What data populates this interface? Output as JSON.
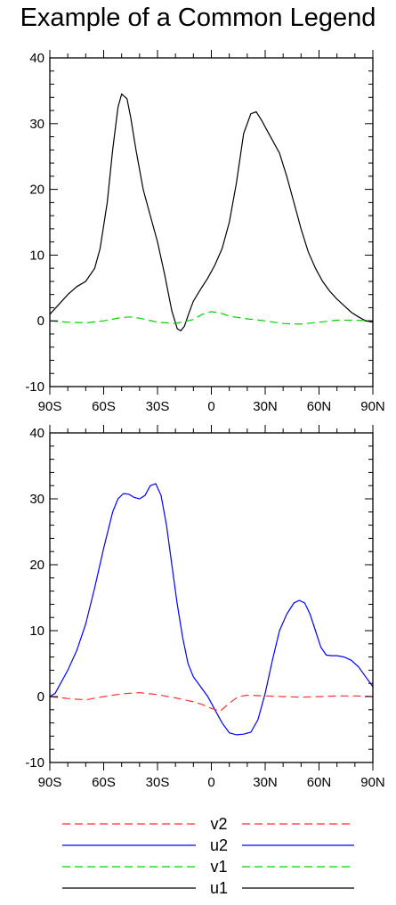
{
  "title": "Example of a Common Legend",
  "chart_data": [
    {
      "type": "line",
      "xlabel": "",
      "ylabel": "",
      "xlim": [
        -90,
        90
      ],
      "ylim": [
        -10,
        40
      ],
      "x_ticks": [
        -90,
        -60,
        -30,
        0,
        30,
        60,
        90
      ],
      "x_tick_labels": [
        "90S",
        "60S",
        "30S",
        "0",
        "30N",
        "60N",
        "90N"
      ],
      "y_ticks": [
        -10,
        0,
        10,
        20,
        30,
        40
      ],
      "y_tick_labels": [
        "-10",
        "0",
        "10",
        "20",
        "30",
        "40"
      ],
      "series": [
        {
          "name": "u1",
          "color": "#000000",
          "dash": "solid",
          "x": [
            -90,
            -85,
            -80,
            -75,
            -70,
            -65,
            -62,
            -58,
            -55,
            -52,
            -50,
            -47,
            -45,
            -42,
            -38,
            -34,
            -30,
            -26,
            -22,
            -19,
            -17,
            -15,
            -13,
            -10,
            -6,
            -2,
            2,
            6,
            10,
            14,
            18,
            22,
            25,
            28,
            31,
            34,
            38,
            42,
            46,
            50,
            54,
            58,
            62,
            66,
            70,
            74,
            78,
            82,
            86,
            90
          ],
          "y": [
            1,
            2.5,
            4,
            5.2,
            6,
            8,
            11,
            18,
            26,
            32.5,
            34.5,
            33.8,
            31,
            26,
            20,
            16,
            12,
            7,
            1.5,
            -1.2,
            -1.5,
            -0.8,
            0.8,
            3,
            4.8,
            6.5,
            8.5,
            11,
            15,
            21,
            28.5,
            31.5,
            31.8,
            30.5,
            29,
            27.5,
            25.5,
            22,
            18,
            14,
            10.5,
            8,
            6,
            4.5,
            3.3,
            2.3,
            1.3,
            0.6,
            0,
            -0.2
          ]
        },
        {
          "name": "v1",
          "color": "#00d200",
          "dash": "dashed",
          "x": [
            -90,
            -80,
            -70,
            -60,
            -50,
            -45,
            -40,
            -30,
            -20,
            -10,
            -5,
            0,
            5,
            10,
            20,
            30,
            40,
            50,
            60,
            70,
            80,
            90
          ],
          "y": [
            0,
            -0.2,
            -0.3,
            0,
            0.5,
            0.6,
            0.4,
            -0.2,
            -0.4,
            0.2,
            1,
            1.4,
            1.2,
            0.7,
            0.3,
            0,
            -0.4,
            -0.5,
            -0.2,
            0.1,
            0.1,
            0
          ]
        }
      ]
    },
    {
      "type": "line",
      "xlabel": "",
      "ylabel": "",
      "xlim": [
        -90,
        90
      ],
      "ylim": [
        -10,
        40
      ],
      "x_ticks": [
        -90,
        -60,
        -30,
        0,
        30,
        60,
        90
      ],
      "x_tick_labels": [
        "90S",
        "60S",
        "30S",
        "0",
        "30N",
        "60N",
        "90N"
      ],
      "y_ticks": [
        -10,
        0,
        10,
        20,
        30,
        40
      ],
      "y_tick_labels": [
        "-10",
        "0",
        "10",
        "20",
        "30",
        "40"
      ],
      "series": [
        {
          "name": "u2",
          "color": "#0000ff",
          "dash": "solid",
          "x": [
            -90,
            -87,
            -84,
            -80,
            -75,
            -70,
            -65,
            -60,
            -55,
            -52,
            -49,
            -46,
            -43,
            -40,
            -37,
            -34,
            -31,
            -28,
            -25,
            -22,
            -19,
            -16,
            -13,
            -10,
            -6,
            -2,
            2,
            6,
            10,
            14,
            18,
            22,
            26,
            30,
            34,
            38,
            42,
            46,
            49,
            52,
            55,
            58,
            61,
            64,
            67,
            70,
            74,
            78,
            82,
            86,
            90
          ],
          "y": [
            0,
            0.5,
            2,
            4,
            7,
            11,
            16.5,
            22.5,
            28,
            30,
            30.8,
            30.7,
            30.2,
            30,
            30.5,
            32,
            32.3,
            30.5,
            26,
            20,
            14,
            9,
            5,
            3,
            1.5,
            0,
            -2,
            -4,
            -5.5,
            -5.8,
            -5.7,
            -5.4,
            -3.5,
            0.5,
            5.5,
            10,
            12.5,
            14.2,
            14.6,
            14.2,
            12.5,
            10,
            7.5,
            6.3,
            6.2,
            6.2,
            6,
            5.5,
            4.5,
            3,
            1.5
          ]
        },
        {
          "name": "v2",
          "color": "#ff3030",
          "dash": "dashed",
          "x": [
            -90,
            -80,
            -70,
            -60,
            -50,
            -40,
            -30,
            -20,
            -10,
            -5,
            0,
            5,
            10,
            15,
            20,
            30,
            40,
            50,
            60,
            70,
            80,
            90
          ],
          "y": [
            0,
            -0.3,
            -0.5,
            0,
            0.4,
            0.6,
            0.3,
            -0.2,
            -0.8,
            -1.2,
            -1.8,
            -2.2,
            -1,
            0,
            0.2,
            0.1,
            0,
            -0.1,
            0,
            0.1,
            0.1,
            0
          ]
        }
      ]
    }
  ],
  "legend": {
    "placement": "bottom",
    "items": [
      {
        "label": "v2",
        "color": "#ff3030",
        "dash": "dashed"
      },
      {
        "label": "u2",
        "color": "#0000ff",
        "dash": "solid"
      },
      {
        "label": "v1",
        "color": "#00d200",
        "dash": "dashed"
      },
      {
        "label": "u1",
        "color": "#000000",
        "dash": "solid"
      }
    ]
  }
}
